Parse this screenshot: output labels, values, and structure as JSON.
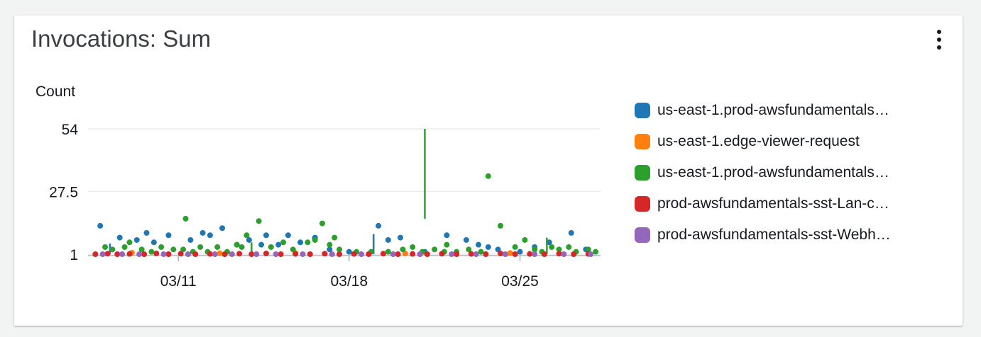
{
  "widget": {
    "title": "Invocations: Sum",
    "menu_icon": "vertical-ellipsis-icon"
  },
  "chart_data": {
    "type": "scatter",
    "title": "Invocations: Sum",
    "ylabel": "Count",
    "xlabel": "",
    "y_ticks": [
      {
        "value": 54,
        "label": "54"
      },
      {
        "value": 27.5,
        "label": "27.5"
      },
      {
        "value": 1,
        "label": "1"
      }
    ],
    "ylim": [
      1,
      54
    ],
    "x_ticks": [
      {
        "value": 10,
        "label": "03/11"
      },
      {
        "value": 17,
        "label": "03/18"
      },
      {
        "value": 24,
        "label": "03/25"
      }
    ],
    "xlim": [
      6.3,
      27.3
    ],
    "grid": true,
    "legend_position": "right",
    "series": [
      {
        "name": "us-east-1.prod-awsfundamentals…",
        "color": "#1f77b4",
        "points": [
          [
            6.8,
            13
          ],
          [
            7.6,
            8
          ],
          [
            8.3,
            7
          ],
          [
            8.7,
            10
          ],
          [
            9.0,
            6
          ],
          [
            9.6,
            9
          ],
          [
            10.5,
            7
          ],
          [
            11.0,
            10
          ],
          [
            11.3,
            9
          ],
          [
            11.8,
            12
          ],
          [
            12.4,
            5
          ],
          [
            12.9,
            7
          ],
          [
            13.4,
            5
          ],
          [
            13.6,
            9
          ],
          [
            14.1,
            5
          ],
          [
            14.5,
            9
          ],
          [
            15.0,
            6
          ],
          [
            15.6,
            8
          ],
          [
            16.2,
            3
          ],
          [
            17.0,
            2
          ],
          [
            18.2,
            13
          ],
          [
            18.6,
            7
          ],
          [
            19.1,
            8
          ],
          [
            20.1,
            2
          ],
          [
            21.0,
            9
          ],
          [
            21.8,
            7
          ],
          [
            22.3,
            5
          ],
          [
            22.7,
            4
          ],
          [
            23.1,
            3
          ],
          [
            24.0,
            2
          ],
          [
            24.6,
            4
          ],
          [
            25.2,
            6
          ],
          [
            26.1,
            10
          ],
          [
            26.7,
            3
          ]
        ],
        "lines": [
          [
            7.2,
            1,
            5.5
          ],
          [
            18.0,
            1,
            9.5
          ]
        ]
      },
      {
        "name": "us-east-1.edge-viewer-request",
        "color": "#ff7f0e",
        "points": [
          [
            8.1,
            1.6
          ],
          [
            11.7,
            1.4
          ],
          [
            14.8,
            1.5
          ],
          [
            19.3,
            1.3
          ],
          [
            23.6,
            1.5
          ]
        ],
        "lines": []
      },
      {
        "name": "us-east-1.prod-awsfundamentals…",
        "color": "#2ca02c",
        "points": [
          [
            7.0,
            4
          ],
          [
            7.3,
            3
          ],
          [
            7.8,
            4
          ],
          [
            8.0,
            6
          ],
          [
            8.5,
            3
          ],
          [
            8.9,
            2
          ],
          [
            9.3,
            4
          ],
          [
            9.8,
            3
          ],
          [
            10.2,
            3
          ],
          [
            10.6,
            2
          ],
          [
            10.9,
            4
          ],
          [
            11.2,
            2
          ],
          [
            11.6,
            4
          ],
          [
            12.0,
            2
          ],
          [
            12.4,
            5
          ],
          [
            12.8,
            9
          ],
          [
            13.3,
            15
          ],
          [
            13.8,
            4
          ],
          [
            14.3,
            6
          ],
          [
            14.7,
            3
          ],
          [
            15.3,
            6
          ],
          [
            15.6,
            7
          ],
          [
            15.9,
            14
          ],
          [
            16.2,
            5
          ],
          [
            16.6,
            3
          ],
          [
            17.3,
            2
          ],
          [
            17.9,
            2
          ],
          [
            18.6,
            2
          ],
          [
            19.2,
            3
          ],
          [
            19.6,
            4
          ],
          [
            20.0,
            2
          ],
          [
            20.5,
            3
          ],
          [
            20.9,
            2
          ],
          [
            21.4,
            2
          ],
          [
            21.9,
            3
          ],
          [
            22.4,
            2
          ],
          [
            22.7,
            34
          ],
          [
            23.2,
            13
          ],
          [
            23.8,
            4
          ],
          [
            24.2,
            7
          ],
          [
            24.6,
            3
          ],
          [
            24.9,
            2
          ],
          [
            25.3,
            4
          ],
          [
            25.6,
            3
          ],
          [
            26.0,
            4
          ],
          [
            26.3,
            2
          ],
          [
            26.8,
            3
          ],
          [
            27.1,
            2
          ],
          [
            10.3,
            16
          ],
          [
            12.6,
            4
          ],
          [
            16.4,
            8
          ],
          [
            21.0,
            5
          ]
        ],
        "lines": [
          [
            20.1,
            16,
            54
          ],
          [
            13.0,
            1,
            6
          ],
          [
            25.1,
            1,
            8
          ]
        ]
      },
      {
        "name": "prod-awsfundamentals-sst-Lan-c…",
        "color": "#d62728",
        "points": [
          [
            6.6,
            1
          ],
          [
            7.1,
            1.2
          ],
          [
            7.5,
            1
          ],
          [
            8.0,
            1.1
          ],
          [
            8.6,
            1
          ],
          [
            9.1,
            1.3
          ],
          [
            9.6,
            1
          ],
          [
            10.1,
            1.2
          ],
          [
            10.7,
            1
          ],
          [
            11.3,
            1.1
          ],
          [
            11.9,
            1
          ],
          [
            12.5,
            1.2
          ],
          [
            13.0,
            1
          ],
          [
            13.6,
            1.3
          ],
          [
            14.2,
            1
          ],
          [
            14.8,
            1.1
          ],
          [
            15.4,
            1
          ],
          [
            16.0,
            1.2
          ],
          [
            16.6,
            1
          ],
          [
            17.2,
            1.1
          ],
          [
            17.8,
            1
          ],
          [
            18.4,
            1.2
          ],
          [
            19.0,
            1
          ],
          [
            19.6,
            1.1
          ],
          [
            20.2,
            1
          ],
          [
            20.8,
            1.2
          ],
          [
            21.4,
            1
          ],
          [
            22.0,
            1.1
          ],
          [
            22.6,
            1
          ],
          [
            23.2,
            1.3
          ],
          [
            23.8,
            1
          ],
          [
            24.4,
            1.1
          ],
          [
            25.0,
            1
          ],
          [
            25.6,
            1.2
          ],
          [
            26.2,
            1
          ],
          [
            26.8,
            1.1
          ]
        ],
        "lines": []
      },
      {
        "name": "prod-awsfundamentals-sst-Webh…",
        "color": "#9467bd",
        "points": [
          [
            6.9,
            1
          ],
          [
            7.7,
            1
          ],
          [
            8.4,
            1
          ],
          [
            9.4,
            1
          ],
          [
            10.4,
            1
          ],
          [
            11.5,
            1
          ],
          [
            12.2,
            1
          ],
          [
            13.2,
            1
          ],
          [
            14.0,
            1
          ],
          [
            15.1,
            1
          ],
          [
            16.3,
            1
          ],
          [
            17.5,
            1
          ],
          [
            18.8,
            1
          ],
          [
            19.9,
            1
          ],
          [
            21.2,
            1
          ],
          [
            22.2,
            1
          ],
          [
            23.4,
            1
          ],
          [
            24.6,
            1
          ],
          [
            25.8,
            1
          ],
          [
            26.9,
            1
          ]
        ],
        "lines": []
      }
    ]
  }
}
